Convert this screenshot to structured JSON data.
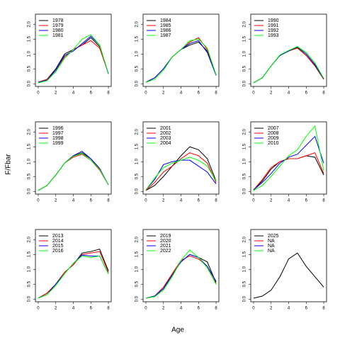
{
  "ylabel": "F/Fbar",
  "xlabel": "Age",
  "chart_data": [
    {
      "type": "line",
      "x": [
        0,
        1,
        2,
        3,
        4,
        5,
        6,
        7,
        8
      ],
      "xlim": [
        -0.32,
        8.32
      ],
      "ylim": [
        -0.09,
        2.34
      ],
      "xticks": [
        0,
        2,
        4,
        6,
        8
      ],
      "yticks": [
        {
          "value": 0,
          "label": "0.0"
        },
        0.5,
        {
          "value": 1,
          "label": "1.0"
        },
        1.5,
        {
          "value": 2,
          "label": "2.0"
        }
      ],
      "legend": "top-left",
      "series": [
        {
          "name": "1978",
          "color": "#000000",
          "values": [
            0.05,
            0.15,
            0.5,
            1.0,
            1.15,
            1.3,
            1.55,
            1.25,
            0.35
          ]
        },
        {
          "name": "1979",
          "color": "#ff0000",
          "values": [
            0.05,
            0.15,
            0.45,
            0.9,
            1.15,
            1.3,
            1.45,
            1.2,
            0.35
          ]
        },
        {
          "name": "1980",
          "color": "#0000ff",
          "values": [
            0.05,
            0.12,
            0.45,
            0.95,
            1.1,
            1.35,
            1.6,
            1.3,
            0.33
          ]
        },
        {
          "name": "1981",
          "color": "#00ff00",
          "values": [
            0.03,
            0.1,
            0.4,
            0.85,
            1.15,
            1.5,
            1.65,
            1.3,
            0.35
          ]
        }
      ]
    },
    {
      "type": "line",
      "x": [
        0,
        1,
        2,
        3,
        4,
        5,
        6,
        7,
        8
      ],
      "xlim": [
        -0.32,
        8.32
      ],
      "ylim": [
        -0.09,
        2.34
      ],
      "xticks": [
        0,
        2,
        4,
        6,
        8
      ],
      "yticks": [
        {
          "value": 0,
          "label": "0.0"
        },
        0.5,
        {
          "value": 1,
          "label": "1.0"
        },
        1.5,
        {
          "value": 2,
          "label": "2.0"
        }
      ],
      "legend": "top-left",
      "series": [
        {
          "name": "1984",
          "color": "#000000",
          "values": [
            0.05,
            0.2,
            0.5,
            0.9,
            1.15,
            1.3,
            1.4,
            1.1,
            0.3
          ]
        },
        {
          "name": "1985",
          "color": "#ff0000",
          "values": [
            0.05,
            0.2,
            0.5,
            0.9,
            1.15,
            1.4,
            1.55,
            1.15,
            0.3
          ]
        },
        {
          "name": "1986",
          "color": "#0000ff",
          "values": [
            0.05,
            0.2,
            0.5,
            0.9,
            1.15,
            1.35,
            1.45,
            1.05,
            0.28
          ]
        },
        {
          "name": "1987",
          "color": "#00ff00",
          "values": [
            0.05,
            0.15,
            0.45,
            0.9,
            1.15,
            1.45,
            1.5,
            1.2,
            0.3
          ]
        }
      ]
    },
    {
      "type": "line",
      "x": [
        0,
        1,
        2,
        3,
        4,
        5,
        6,
        7,
        8
      ],
      "xlim": [
        -0.32,
        8.32
      ],
      "ylim": [
        -0.09,
        2.34
      ],
      "xticks": [
        0,
        2,
        4,
        6,
        8
      ],
      "yticks": [
        {
          "value": 0,
          "label": "0.0"
        },
        0.5,
        {
          "value": 1,
          "label": "1.0"
        },
        1.5,
        {
          "value": 2,
          "label": "2.0"
        }
      ],
      "legend": "top-left",
      "series": [
        {
          "name": "1990",
          "color": "#000000",
          "values": [
            0.03,
            0.2,
            0.6,
            0.95,
            1.1,
            1.22,
            0.95,
            0.6,
            0.15
          ]
        },
        {
          "name": "1991",
          "color": "#ff0000",
          "values": [
            0.03,
            0.2,
            0.6,
            0.95,
            1.1,
            1.2,
            0.95,
            0.62,
            0.15
          ]
        },
        {
          "name": "1992",
          "color": "#0000ff",
          "values": [
            0.03,
            0.2,
            0.6,
            0.95,
            1.1,
            1.25,
            1.0,
            0.65,
            0.17
          ]
        },
        {
          "name": "1993",
          "color": "#00ff00",
          "values": [
            0.03,
            0.2,
            0.6,
            0.97,
            1.12,
            1.25,
            1.05,
            0.7,
            0.18
          ]
        }
      ]
    },
    {
      "type": "line",
      "x": [
        0,
        1,
        2,
        3,
        4,
        5,
        6,
        7,
        8
      ],
      "xlim": [
        -0.32,
        8.32
      ],
      "ylim": [
        -0.09,
        2.34
      ],
      "xticks": [
        0,
        2,
        4,
        6,
        8
      ],
      "yticks": [
        {
          "value": 0,
          "label": "0.0"
        },
        0.5,
        {
          "value": 1,
          "label": "1.0"
        },
        1.5,
        {
          "value": 2,
          "label": "2.0"
        }
      ],
      "legend": "top-left",
      "series": [
        {
          "name": "1996",
          "color": "#000000",
          "values": [
            0.03,
            0.2,
            0.55,
            0.95,
            1.2,
            1.3,
            1.1,
            0.75,
            0.22
          ]
        },
        {
          "name": "1997",
          "color": "#ff0000",
          "values": [
            0.03,
            0.2,
            0.55,
            0.95,
            1.15,
            1.25,
            1.05,
            0.72,
            0.22
          ]
        },
        {
          "name": "1998",
          "color": "#0000ff",
          "values": [
            0.03,
            0.2,
            0.55,
            0.95,
            1.2,
            1.35,
            1.1,
            0.78,
            0.22
          ]
        },
        {
          "name": "1999",
          "color": "#00ff00",
          "values": [
            0.03,
            0.2,
            0.55,
            0.95,
            1.18,
            1.28,
            1.05,
            0.75,
            0.22
          ]
        }
      ]
    },
    {
      "type": "line",
      "x": [
        0,
        1,
        2,
        3,
        4,
        5,
        6,
        7,
        8
      ],
      "xlim": [
        -0.32,
        8.32
      ],
      "ylim": [
        -0.09,
        2.34
      ],
      "xticks": [
        0,
        2,
        4,
        6,
        8
      ],
      "yticks": [
        {
          "value": 0,
          "label": "0.0"
        },
        0.5,
        {
          "value": 1,
          "label": "1.0"
        },
        1.5,
        {
          "value": 2,
          "label": "2.0"
        }
      ],
      "legend": "top-left",
      "series": [
        {
          "name": "2001",
          "color": "#000000",
          "values": [
            0.03,
            0.2,
            0.5,
            0.85,
            1.2,
            1.5,
            1.4,
            1.1,
            0.35
          ]
        },
        {
          "name": "2002",
          "color": "#ff0000",
          "values": [
            0.03,
            0.3,
            0.65,
            0.85,
            1.1,
            1.3,
            1.2,
            0.95,
            0.3
          ]
        },
        {
          "name": "2003",
          "color": "#0000ff",
          "values": [
            0.05,
            0.4,
            0.9,
            1.0,
            1.05,
            1.05,
            0.85,
            0.65,
            0.25
          ]
        },
        {
          "name": "2004",
          "color": "#00ff00",
          "values": [
            0.05,
            0.45,
            0.8,
            0.95,
            1.05,
            1.15,
            1.05,
            0.85,
            0.35
          ]
        }
      ]
    },
    {
      "type": "line",
      "x": [
        0,
        1,
        2,
        3,
        4,
        5,
        6,
        7,
        8
      ],
      "xlim": [
        -0.32,
        8.32
      ],
      "ylim": [
        -0.09,
        2.34
      ],
      "xticks": [
        0,
        2,
        4,
        6,
        8
      ],
      "yticks": [
        {
          "value": 0,
          "label": "0.0"
        },
        0.5,
        {
          "value": 1,
          "label": "1.0"
        },
        1.5,
        {
          "value": 2,
          "label": "2.0"
        }
      ],
      "legend": "top-left",
      "series": [
        {
          "name": "2007",
          "color": "#000000",
          "values": [
            0.05,
            0.35,
            0.75,
            1.0,
            1.1,
            1.1,
            1.2,
            1.15,
            0.55
          ]
        },
        {
          "name": "2008",
          "color": "#ff0000",
          "values": [
            0.05,
            0.4,
            0.8,
            1.0,
            1.1,
            1.1,
            1.2,
            1.3,
            0.6
          ]
        },
        {
          "name": "2009",
          "color": "#0000ff",
          "values": [
            0.05,
            0.3,
            0.6,
            0.95,
            1.15,
            1.25,
            1.55,
            1.85,
            0.95
          ]
        },
        {
          "name": "2010",
          "color": "#00ff00",
          "values": [
            0.03,
            0.2,
            0.5,
            0.85,
            1.2,
            1.4,
            1.85,
            2.2,
            0.7
          ]
        }
      ]
    },
    {
      "type": "line",
      "x": [
        0,
        1,
        2,
        3,
        4,
        5,
        6,
        7,
        8
      ],
      "xlim": [
        -0.32,
        8.32
      ],
      "ylim": [
        -0.09,
        2.34
      ],
      "xticks": [
        0,
        2,
        4,
        6,
        8
      ],
      "yticks": [
        {
          "value": 0,
          "label": "0.0"
        },
        0.5,
        {
          "value": 1,
          "label": "1.0"
        },
        1.5,
        {
          "value": 2,
          "label": "2.0"
        }
      ],
      "legend": "top-left",
      "series": [
        {
          "name": "2013",
          "color": "#000000",
          "values": [
            0.03,
            0.2,
            0.5,
            0.9,
            1.15,
            1.55,
            1.6,
            1.68,
            0.95
          ]
        },
        {
          "name": "2014",
          "color": "#ff0000",
          "values": [
            0.03,
            0.2,
            0.5,
            0.9,
            1.15,
            1.5,
            1.55,
            1.6,
            0.9
          ]
        },
        {
          "name": "2015",
          "color": "#0000ff",
          "values": [
            0.03,
            0.15,
            0.5,
            0.85,
            1.2,
            1.48,
            1.45,
            1.45,
            0.85
          ]
        },
        {
          "name": "2016",
          "color": "#00ff00",
          "values": [
            0.03,
            0.15,
            0.45,
            0.85,
            1.2,
            1.45,
            1.4,
            1.45,
            0.85
          ]
        }
      ]
    },
    {
      "type": "line",
      "x": [
        0,
        1,
        2,
        3,
        4,
        5,
        6,
        7,
        8
      ],
      "xlim": [
        -0.32,
        8.32
      ],
      "ylim": [
        -0.09,
        2.34
      ],
      "xticks": [
        0,
        2,
        4,
        6,
        8
      ],
      "yticks": [
        {
          "value": 0,
          "label": "0.0"
        },
        0.5,
        {
          "value": 1,
          "label": "1.0"
        },
        1.5,
        {
          "value": 2,
          "label": "2.0"
        }
      ],
      "legend": "top-left",
      "series": [
        {
          "name": "2019",
          "color": "#000000",
          "values": [
            0.03,
            0.1,
            0.35,
            0.85,
            1.25,
            1.5,
            1.4,
            1.25,
            0.55
          ]
        },
        {
          "name": "2020",
          "color": "#ff0000",
          "values": [
            0.03,
            0.1,
            0.4,
            0.85,
            1.3,
            1.45,
            1.35,
            1.1,
            0.5
          ]
        },
        {
          "name": "2021",
          "color": "#0000ff",
          "values": [
            0.03,
            0.1,
            0.35,
            0.8,
            1.25,
            1.5,
            1.4,
            1.1,
            0.6
          ]
        },
        {
          "name": "2022",
          "color": "#00ff00",
          "values": [
            0.03,
            0.08,
            0.3,
            0.75,
            1.3,
            1.65,
            1.4,
            1.05,
            0.5
          ]
        }
      ]
    },
    {
      "type": "line",
      "x": [
        0,
        1,
        2,
        3,
        4,
        5,
        6,
        7,
        8
      ],
      "xlim": [
        -0.32,
        8.32
      ],
      "ylim": [
        -0.09,
        2.34
      ],
      "xticks": [
        0,
        2,
        4,
        6,
        8
      ],
      "yticks": [
        {
          "value": 0,
          "label": "0.0"
        },
        0.5,
        {
          "value": 1,
          "label": "1.0"
        },
        1.5,
        {
          "value": 2,
          "label": "2.0"
        }
      ],
      "legend": "top-left",
      "series": [
        {
          "name": "2025",
          "color": "#000000",
          "values": [
            0.03,
            0.1,
            0.3,
            0.75,
            1.35,
            1.55,
            1.1,
            0.75,
            0.4
          ]
        },
        {
          "name": "NA",
          "color": "#ff0000",
          "values": [
            null,
            null,
            null,
            null,
            null,
            null,
            null,
            null,
            null
          ]
        },
        {
          "name": "NA",
          "color": "#0000ff",
          "values": [
            null,
            null,
            null,
            null,
            null,
            null,
            null,
            null,
            null
          ]
        },
        {
          "name": "NA",
          "color": "#00ff00",
          "values": [
            null,
            null,
            null,
            null,
            null,
            null,
            null,
            null,
            null
          ]
        }
      ]
    }
  ]
}
